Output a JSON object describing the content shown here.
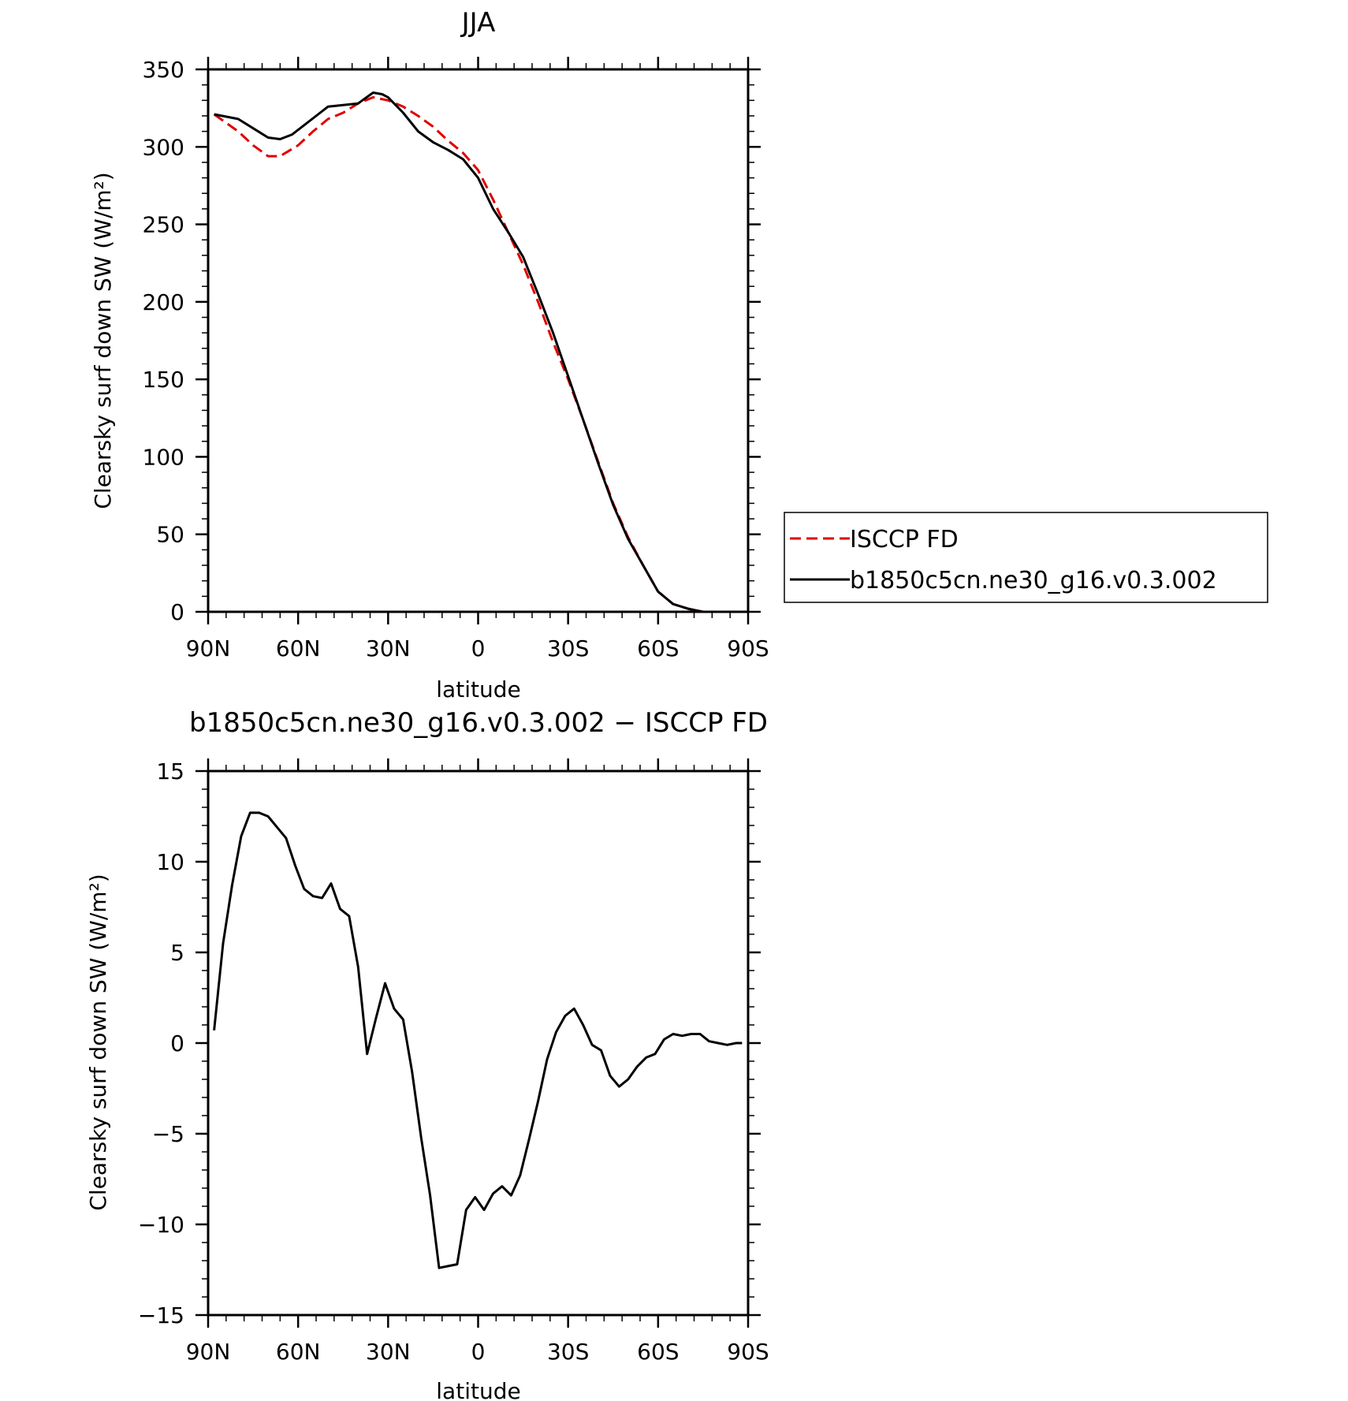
{
  "chart_data": [
    {
      "type": "line",
      "title": "JJA",
      "xlabel": "latitude",
      "ylabel": "Clearsky surf down SW (W/m²)",
      "xlim": [
        90,
        -90
      ],
      "ylim": [
        0,
        350
      ],
      "xticks": [
        90,
        60,
        30,
        0,
        -30,
        -60,
        -90
      ],
      "xtick_labels": [
        "90N",
        "60N",
        "30N",
        "0",
        "30S",
        "60S",
        "90S"
      ],
      "yticks": [
        0,
        50,
        100,
        150,
        200,
        250,
        300,
        350
      ],
      "ytick_labels": [
        "0",
        "50",
        "100",
        "150",
        "200",
        "250",
        "300",
        "350"
      ],
      "legend_position": "right",
      "series": [
        {
          "name": "ISCCP FD",
          "color": "#e00000",
          "dash": "dashed",
          "x": [
            88,
            80,
            75,
            70,
            66,
            60,
            55,
            50,
            45,
            40,
            35,
            30,
            25,
            20,
            15,
            10,
            5,
            0,
            -5,
            -10,
            -15,
            -20,
            -25,
            -30,
            -35,
            -40,
            -45,
            -50,
            -55,
            -60,
            -65,
            -70,
            -75,
            -80
          ],
          "y": [
            321,
            310,
            301,
            294,
            294,
            301,
            310,
            318,
            322,
            328,
            332,
            330,
            326,
            320,
            313,
            304,
            296,
            285,
            266,
            245,
            224,
            200,
            174,
            150,
            124,
            97,
            70,
            48,
            30,
            13,
            5,
            2,
            0,
            0
          ]
        },
        {
          "name": "b1850c5cn.ne30_g16.v0.3.002",
          "color": "#000000",
          "dash": "solid",
          "x": [
            88,
            80,
            75,
            70,
            66,
            62,
            58,
            54,
            50,
            45,
            40,
            35,
            32,
            30,
            25,
            20,
            15,
            10,
            5,
            0,
            -5,
            -10,
            -15,
            -20,
            -25,
            -30,
            -35,
            -40,
            -45,
            -50,
            -55,
            -60,
            -65,
            -70,
            -75,
            -80
          ],
          "y": [
            321,
            318,
            312,
            306,
            305,
            308,
            314,
            320,
            326,
            327,
            328,
            335,
            334,
            332,
            322,
            310,
            303,
            298,
            292,
            280,
            260,
            245,
            229,
            205,
            180,
            152,
            124,
            96,
            69,
            47,
            30,
            13,
            5,
            2,
            0,
            0
          ]
        }
      ]
    },
    {
      "type": "line",
      "title": "b1850c5cn.ne30_g16.v0.3.002 − ISCCP FD",
      "xlabel": "latitude",
      "ylabel": "Clearsky surf down SW (W/m²)",
      "xlim": [
        90,
        -90
      ],
      "ylim": [
        -15,
        15
      ],
      "xticks": [
        90,
        60,
        30,
        0,
        -30,
        -60,
        -90
      ],
      "xtick_labels": [
        "90N",
        "60N",
        "30N",
        "0",
        "30S",
        "60S",
        "90S"
      ],
      "yticks": [
        -15,
        -10,
        -5,
        0,
        5,
        10,
        15
      ],
      "ytick_labels": [
        "−15",
        "−10",
        "−5",
        "0",
        "5",
        "10",
        "15"
      ],
      "series": [
        {
          "color": "#000000",
          "dash": "solid",
          "x": [
            88,
            85,
            82,
            79,
            76,
            73,
            70,
            67,
            64,
            61,
            58,
            55,
            52,
            49,
            46,
            43,
            40,
            37,
            34,
            31,
            28,
            25,
            22,
            19,
            16,
            13,
            10,
            7,
            4,
            1,
            -2,
            -5,
            -8,
            -11,
            -14,
            -17,
            -20,
            -23,
            -26,
            -29,
            -32,
            -35,
            -38,
            -41,
            -44,
            -47,
            -50,
            -53,
            -56,
            -59,
            -62,
            -65,
            -68,
            -71,
            -74,
            -77,
            -80,
            -83,
            -86,
            -88
          ],
          "y": [
            0.7,
            5.5,
            8.7,
            11.4,
            12.7,
            12.7,
            12.5,
            11.9,
            11.3,
            9.8,
            8.5,
            8.1,
            8.0,
            8.8,
            7.4,
            7.0,
            4.2,
            -0.6,
            1.4,
            3.3,
            1.9,
            1.3,
            -1.6,
            -5.2,
            -8.4,
            -12.4,
            -12.3,
            -12.2,
            -9.2,
            -8.5,
            -9.2,
            -8.3,
            -7.9,
            -8.4,
            -7.3,
            -5.3,
            -3.2,
            -0.9,
            0.6,
            1.5,
            1.9,
            1.0,
            -0.1,
            -0.4,
            -1.8,
            -2.4,
            -2.0,
            -1.3,
            -0.8,
            -0.6,
            0.2,
            0.5,
            0.4,
            0.5,
            0.5,
            0.1,
            0.0,
            -0.1,
            0.0,
            0.0
          ]
        }
      ]
    }
  ]
}
